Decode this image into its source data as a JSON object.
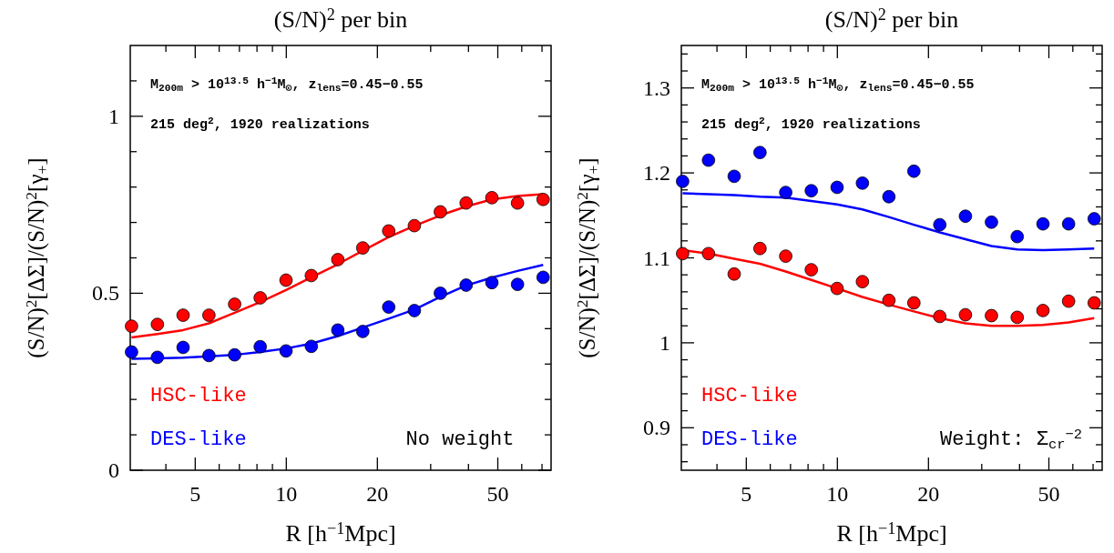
{
  "chart_data": [
    {
      "type": "scatter",
      "title": "(S/N)$^{2}$ per bin",
      "xlabel": "R [h$^{−1}$Mpc]",
      "ylabel": "(S/N)$^{2}$[ΔΣ]/(S/N)$^{2}$[γ$_{+}$]",
      "log": "x",
      "xlim": [
        3.05,
        75
      ],
      "ylim": [
        0,
        1.2
      ],
      "xticks": [
        {
          "value": 4,
          "label": null
        },
        5,
        {
          "value": 6,
          "label": null
        },
        {
          "value": 7,
          "label": null
        },
        {
          "value": 8,
          "label": null
        },
        {
          "value": 9,
          "label": null
        },
        10,
        20,
        {
          "value": 30,
          "label": null
        },
        {
          "value": 40,
          "label": null
        },
        50,
        {
          "value": 60,
          "label": null
        },
        {
          "value": 70,
          "label": null
        }
      ],
      "yticks": [
        0,
        {
          "value": 0.1,
          "label": null
        },
        {
          "value": 0.2,
          "label": null
        },
        {
          "value": 0.3,
          "label": null
        },
        {
          "value": 0.4,
          "label": null
        },
        0.5,
        {
          "value": 0.6,
          "label": null
        },
        {
          "value": 0.7,
          "label": null
        },
        {
          "value": 0.8,
          "label": null
        },
        {
          "value": 0.9,
          "label": null
        },
        1,
        {
          "value": 1.1,
          "label": null
        }
      ],
      "x": [
        3.08,
        3.75,
        4.56,
        5.55,
        6.75,
        8.2,
        9.98,
        12.1,
        14.8,
        17.9,
        21.8,
        26.5,
        32.3,
        39.3,
        47.8,
        58.1,
        70.6
      ],
      "marker": "circle",
      "legend": "bottom left",
      "annotations": [
        "M$_{200m}$ > 10$^{13.5}$ h$^{−1}$M$_{⊙}$, z$_{lens}$=0.45−0.55",
        "215 deg$^{2}$, 1920 realizations",
        "No weight"
      ],
      "series": [
        {
          "type": "line",
          "marker": "none",
          "color": "#ff0000",
          "values": [
            0.375,
            0.385,
            0.396,
            0.415,
            0.445,
            0.475,
            0.509,
            0.545,
            0.582,
            0.62,
            0.659,
            0.69,
            0.72,
            0.745,
            0.765,
            0.775,
            0.78
          ]
        },
        {
          "type": "line",
          "marker": "none",
          "color": "#0000ff",
          "values": [
            0.315,
            0.316,
            0.318,
            0.322,
            0.326,
            0.334,
            0.344,
            0.358,
            0.379,
            0.403,
            0.428,
            0.454,
            0.49,
            0.522,
            0.544,
            0.563,
            0.58
          ]
        },
        {
          "name": "HSC-like",
          "color": "#ff0000",
          "values": [
            0.407,
            0.412,
            0.438,
            0.438,
            0.469,
            0.487,
            0.537,
            0.55,
            0.595,
            0.628,
            0.676,
            0.691,
            0.73,
            0.755,
            0.77,
            0.755,
            0.765
          ]
        },
        {
          "name": "DES-like",
          "color": "#0000ff",
          "values": [
            0.334,
            0.319,
            0.347,
            0.324,
            0.326,
            0.349,
            0.337,
            0.35,
            0.396,
            0.392,
            0.461,
            0.451,
            0.5,
            0.523,
            0.53,
            0.525,
            0.545
          ]
        }
      ]
    },
    {
      "type": "scatter",
      "title": "(S/N)$^{2}$ per bin",
      "xlabel": "R [h$^{−1}$Mpc]",
      "ylabel": "(S/N)$^{2}$[ΔΣ]/(S/N)$^{2}$[γ$_{+}$]",
      "log": "x",
      "xlim": [
        3.05,
        75
      ],
      "ylim": [
        0.85,
        1.35
      ],
      "xticks": [
        {
          "value": 4,
          "label": null
        },
        5,
        {
          "value": 6,
          "label": null
        },
        {
          "value": 7,
          "label": null
        },
        {
          "value": 8,
          "label": null
        },
        {
          "value": 9,
          "label": null
        },
        10,
        20,
        {
          "value": 30,
          "label": null
        },
        {
          "value": 40,
          "label": null
        },
        50,
        {
          "value": 60,
          "label": null
        },
        {
          "value": 70,
          "label": null
        }
      ],
      "yticks": [
        {
          "value": 0.86,
          "label": null
        },
        {
          "value": 0.88,
          "label": null
        },
        0.9,
        {
          "value": 0.92,
          "label": null
        },
        {
          "value": 0.94,
          "label": null
        },
        {
          "value": 0.96,
          "label": null
        },
        {
          "value": 0.98,
          "label": null
        },
        1,
        {
          "value": 1.02,
          "label": null
        },
        {
          "value": 1.04,
          "label": null
        },
        {
          "value": 1.06,
          "label": null
        },
        {
          "value": 1.08,
          "label": null
        },
        1.1,
        {
          "value": 1.12,
          "label": null
        },
        {
          "value": 1.14,
          "label": null
        },
        {
          "value": 1.16,
          "label": null
        },
        {
          "value": 1.18,
          "label": null
        },
        1.2,
        {
          "value": 1.22,
          "label": null
        },
        {
          "value": 1.24,
          "label": null
        },
        {
          "value": 1.26,
          "label": null
        },
        {
          "value": 1.28,
          "label": null
        },
        1.3,
        {
          "value": 1.32,
          "label": null
        },
        {
          "value": 1.34,
          "label": null
        }
      ],
      "x": [
        3.08,
        3.75,
        4.56,
        5.55,
        6.75,
        8.2,
        9.98,
        12.1,
        14.8,
        17.9,
        21.8,
        26.5,
        32.3,
        39.3,
        47.8,
        58.1,
        70.6
      ],
      "marker": "circle",
      "legend": "bottom left",
      "annotations": [
        "M$_{200m}$ > 10$^{13.5}$ h$^{−1}$M$_{⊙}$, z$_{lens}$=0.45−0.55",
        "215 deg$^{2}$, 1920 realizations",
        "Weight: Σ$_{cr}$$^{−2}$"
      ],
      "series": [
        {
          "type": "line",
          "marker": "none",
          "color": "#0000ff",
          "values": [
            1.176,
            1.175,
            1.174,
            1.172,
            1.171,
            1.167,
            1.163,
            1.157,
            1.148,
            1.139,
            1.13,
            1.122,
            1.114,
            1.11,
            1.109,
            1.11,
            1.111
          ]
        },
        {
          "type": "line",
          "marker": "none",
          "color": "#ff0000",
          "values": [
            1.109,
            1.105,
            1.099,
            1.093,
            1.084,
            1.074,
            1.064,
            1.054,
            1.045,
            1.037,
            1.029,
            1.023,
            1.02,
            1.02,
            1.021,
            1.024,
            1.029
          ]
        },
        {
          "name": "HSC-like",
          "color": "#ff0000",
          "values": [
            1.105,
            1.105,
            1.081,
            1.111,
            1.102,
            1.086,
            1.064,
            1.072,
            1.05,
            1.047,
            1.031,
            1.033,
            1.032,
            1.03,
            1.038,
            1.049,
            1.047
          ]
        },
        {
          "name": "DES-like",
          "color": "#0000ff",
          "values": [
            1.19,
            1.215,
            1.196,
            1.224,
            1.177,
            1.179,
            1.183,
            1.188,
            1.172,
            1.202,
            1.139,
            1.149,
            1.142,
            1.125,
            1.14,
            1.14,
            1.146
          ]
        }
      ]
    }
  ]
}
